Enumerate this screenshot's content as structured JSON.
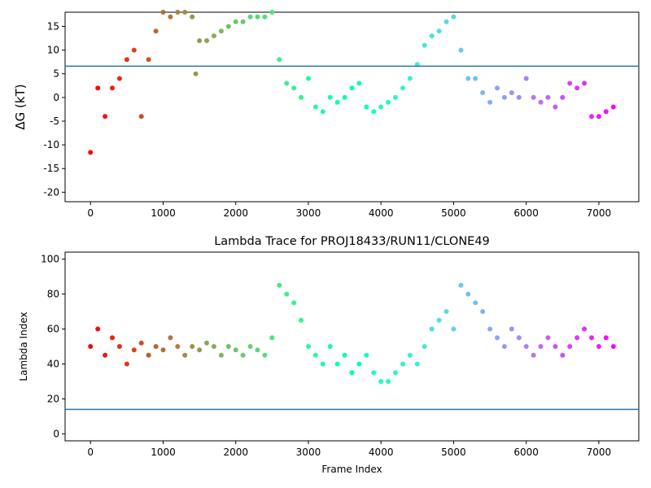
{
  "chart_data": [
    {
      "type": "scatter",
      "title": "",
      "xlabel": "",
      "ylabel": "ΔG (kT)",
      "xlim": [
        -350,
        7550
      ],
      "ylim": [
        -22,
        18
      ],
      "xticks": [
        0,
        1000,
        2000,
        3000,
        4000,
        5000,
        6000,
        7000
      ],
      "yticks": [
        -20,
        -15,
        -10,
        -5,
        0,
        5,
        10,
        15
      ],
      "hline": 6.6,
      "hline_color": "#1f77b4",
      "colormap": "rainbow (red at frame 0 to violet at last frame)",
      "series": [
        {
          "x": [
            0,
            100,
            200,
            300,
            400,
            500,
            600,
            700,
            800,
            900,
            1000,
            1100,
            1200,
            1300,
            1400,
            1450,
            1500,
            1600,
            1700,
            1800,
            1900,
            2000,
            2100,
            2200,
            2300,
            2400,
            2500,
            2600,
            2700,
            2800,
            2900,
            3000,
            3100,
            3200,
            3300,
            3400,
            3500,
            3600,
            3700,
            3800,
            3900,
            4000,
            4100,
            4200,
            4300,
            4400,
            4500,
            4600,
            4700,
            4800,
            4900,
            5000,
            5100,
            5200,
            5300,
            5400,
            5500,
            5600,
            5700,
            5800,
            5900,
            6000,
            6100,
            6200,
            6300,
            6400,
            6500,
            6600,
            6700,
            6800,
            6900,
            7000,
            7100,
            7200
          ],
          "y": [
            -11.6,
            2,
            -4,
            2,
            4,
            8,
            10,
            -4,
            8,
            14,
            18,
            17,
            18,
            18,
            17,
            5,
            12,
            12,
            13,
            14,
            15,
            16,
            16,
            17,
            17,
            17,
            18,
            8,
            3,
            2,
            0,
            4,
            -2,
            -3,
            0,
            -1,
            0,
            2,
            3,
            -2,
            -3,
            -2,
            -1,
            0,
            2,
            4,
            7,
            11,
            13,
            14,
            16,
            17,
            10,
            4,
            4,
            1,
            -1,
            2,
            0,
            1,
            0,
            4,
            0,
            -1,
            0,
            -2,
            0,
            3,
            2,
            3,
            -4,
            -4,
            -3,
            -2
          ]
        }
      ]
    },
    {
      "type": "scatter",
      "title": "Lambda Trace for PROJ18433/RUN11/CLONE49",
      "xlabel": "Frame Index",
      "ylabel": "Lambda Index",
      "xlim": [
        -350,
        7550
      ],
      "ylim": [
        -4,
        104
      ],
      "xticks": [
        0,
        1000,
        2000,
        3000,
        4000,
        5000,
        6000,
        7000
      ],
      "yticks": [
        0,
        20,
        40,
        60,
        80,
        100
      ],
      "hline": 14,
      "hline_color": "#1f77b4",
      "colormap": "rainbow (red at frame 0 to violet at last frame)",
      "series": [
        {
          "x": [
            0,
            100,
            200,
            300,
            400,
            500,
            600,
            700,
            800,
            900,
            1000,
            1100,
            1200,
            1300,
            1400,
            1500,
            1600,
            1700,
            1800,
            1900,
            2000,
            2100,
            2200,
            2300,
            2400,
            2500,
            2600,
            2700,
            2800,
            2900,
            3000,
            3100,
            3200,
            3300,
            3400,
            3500,
            3600,
            3700,
            3800,
            3900,
            4000,
            4100,
            4200,
            4300,
            4400,
            4500,
            4600,
            4700,
            4800,
            4900,
            5000,
            5100,
            5200,
            5300,
            5400,
            5500,
            5600,
            5700,
            5800,
            5900,
            6000,
            6100,
            6200,
            6300,
            6400,
            6500,
            6600,
            6700,
            6800,
            6900,
            7000,
            7100,
            7200
          ],
          "y": [
            50,
            60,
            45,
            55,
            50,
            40,
            48,
            52,
            45,
            50,
            48,
            55,
            50,
            45,
            50,
            48,
            52,
            50,
            45,
            50,
            48,
            45,
            50,
            48,
            45,
            55,
            85,
            80,
            75,
            65,
            50,
            45,
            40,
            50,
            40,
            45,
            35,
            40,
            45,
            35,
            30,
            30,
            35,
            40,
            45,
            40,
            50,
            60,
            65,
            70,
            60,
            85,
            80,
            75,
            70,
            60,
            55,
            50,
            60,
            55,
            50,
            45,
            50,
            55,
            50,
            45,
            50,
            55,
            60,
            55,
            50,
            55,
            50
          ]
        }
      ]
    }
  ]
}
